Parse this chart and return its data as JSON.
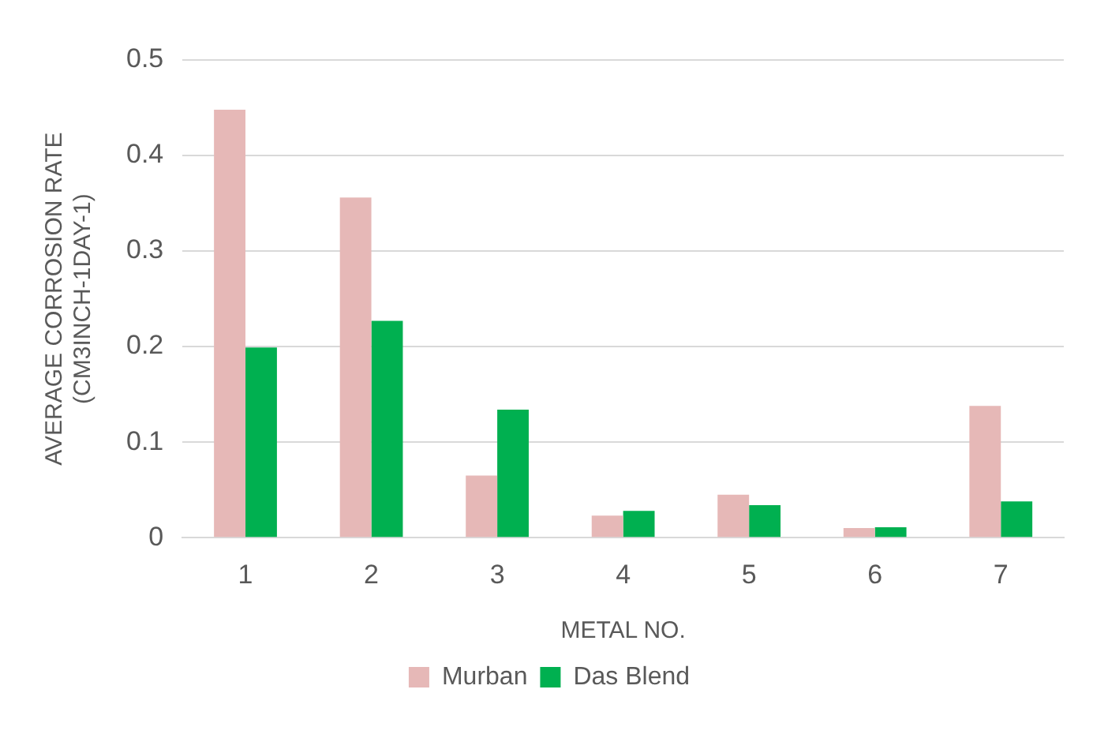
{
  "chart_data": {
    "type": "bar",
    "xlabel": "METAL NO.",
    "ylabel": "AVERAGE CORROSION RATE\n(CM3INCH-1DAY-1)",
    "categories": [
      "1",
      "2",
      "3",
      "4",
      "5",
      "6",
      "7"
    ],
    "series": [
      {
        "name": "Murban",
        "color": "#e6b8b7",
        "values": [
          0.448,
          0.356,
          0.065,
          0.023,
          0.045,
          0.01,
          0.138
        ]
      },
      {
        "name": "Das Blend",
        "color": "#00b050",
        "values": [
          0.199,
          0.227,
          0.134,
          0.028,
          0.034,
          0.011,
          0.038
        ]
      }
    ],
    "ylim": [
      0,
      0.5
    ],
    "yticks": [
      0,
      0.1,
      0.2,
      0.3,
      0.4,
      0.5
    ],
    "grid": "y",
    "legend": "bottom"
  }
}
